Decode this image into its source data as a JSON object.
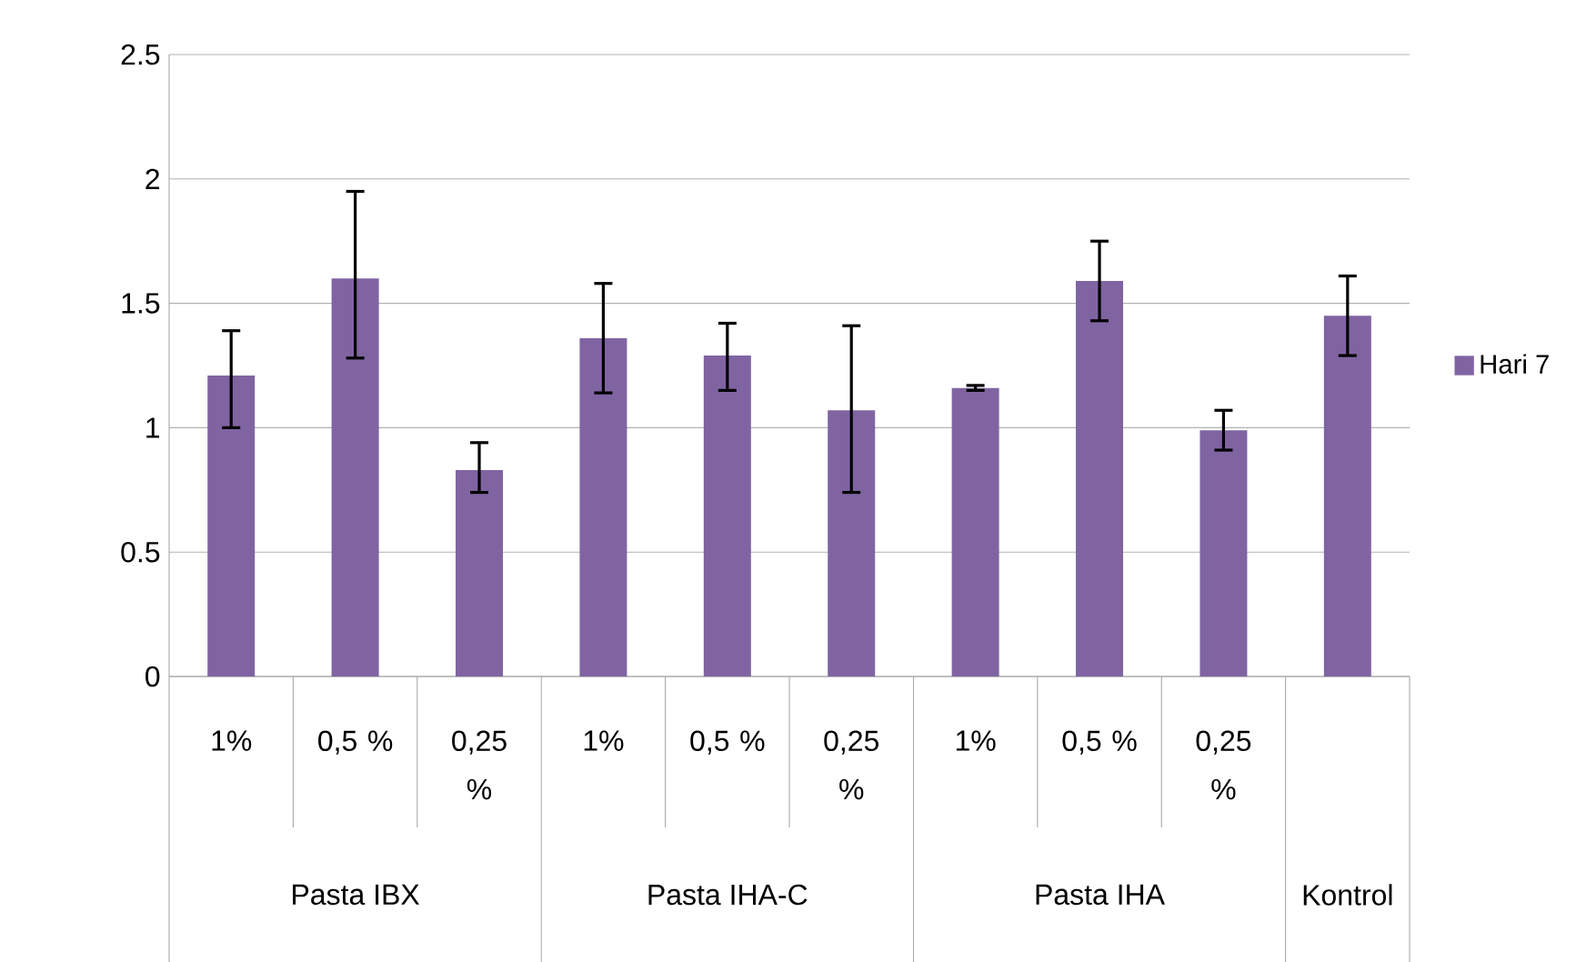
{
  "chart_data": {
    "type": "bar",
    "categories": [
      "1%",
      "0,5 %",
      "0,25 %",
      "1%",
      "0,5 %",
      "0,25 %",
      "1%",
      "0,5 %",
      "0,25 %",
      null
    ],
    "series": [
      {
        "name": "Hari 7",
        "color": "#8064a2",
        "values": [
          1.21,
          1.6,
          0.83,
          1.36,
          1.29,
          1.07,
          1.16,
          1.59,
          0.99,
          1.45
        ],
        "errors": [
          [
            1.0,
            1.39
          ],
          [
            1.28,
            1.95
          ],
          [
            0.74,
            0.94
          ],
          [
            1.14,
            1.58
          ],
          [
            1.15,
            1.42
          ],
          [
            0.74,
            1.41
          ],
          [
            1.15,
            1.17
          ],
          [
            1.43,
            1.75
          ],
          [
            0.91,
            1.07
          ],
          [
            1.29,
            1.61
          ]
        ]
      }
    ],
    "annotations": [
      "Pasta IBX",
      "Pasta IHA-C",
      "Pasta IHA",
      "Kontrol"
    ],
    "ylim": [
      0,
      2.5
    ],
    "yticks": [
      0,
      0.5,
      1,
      1.5,
      2,
      2.5
    ],
    "grid": "y",
    "legend": "right"
  }
}
